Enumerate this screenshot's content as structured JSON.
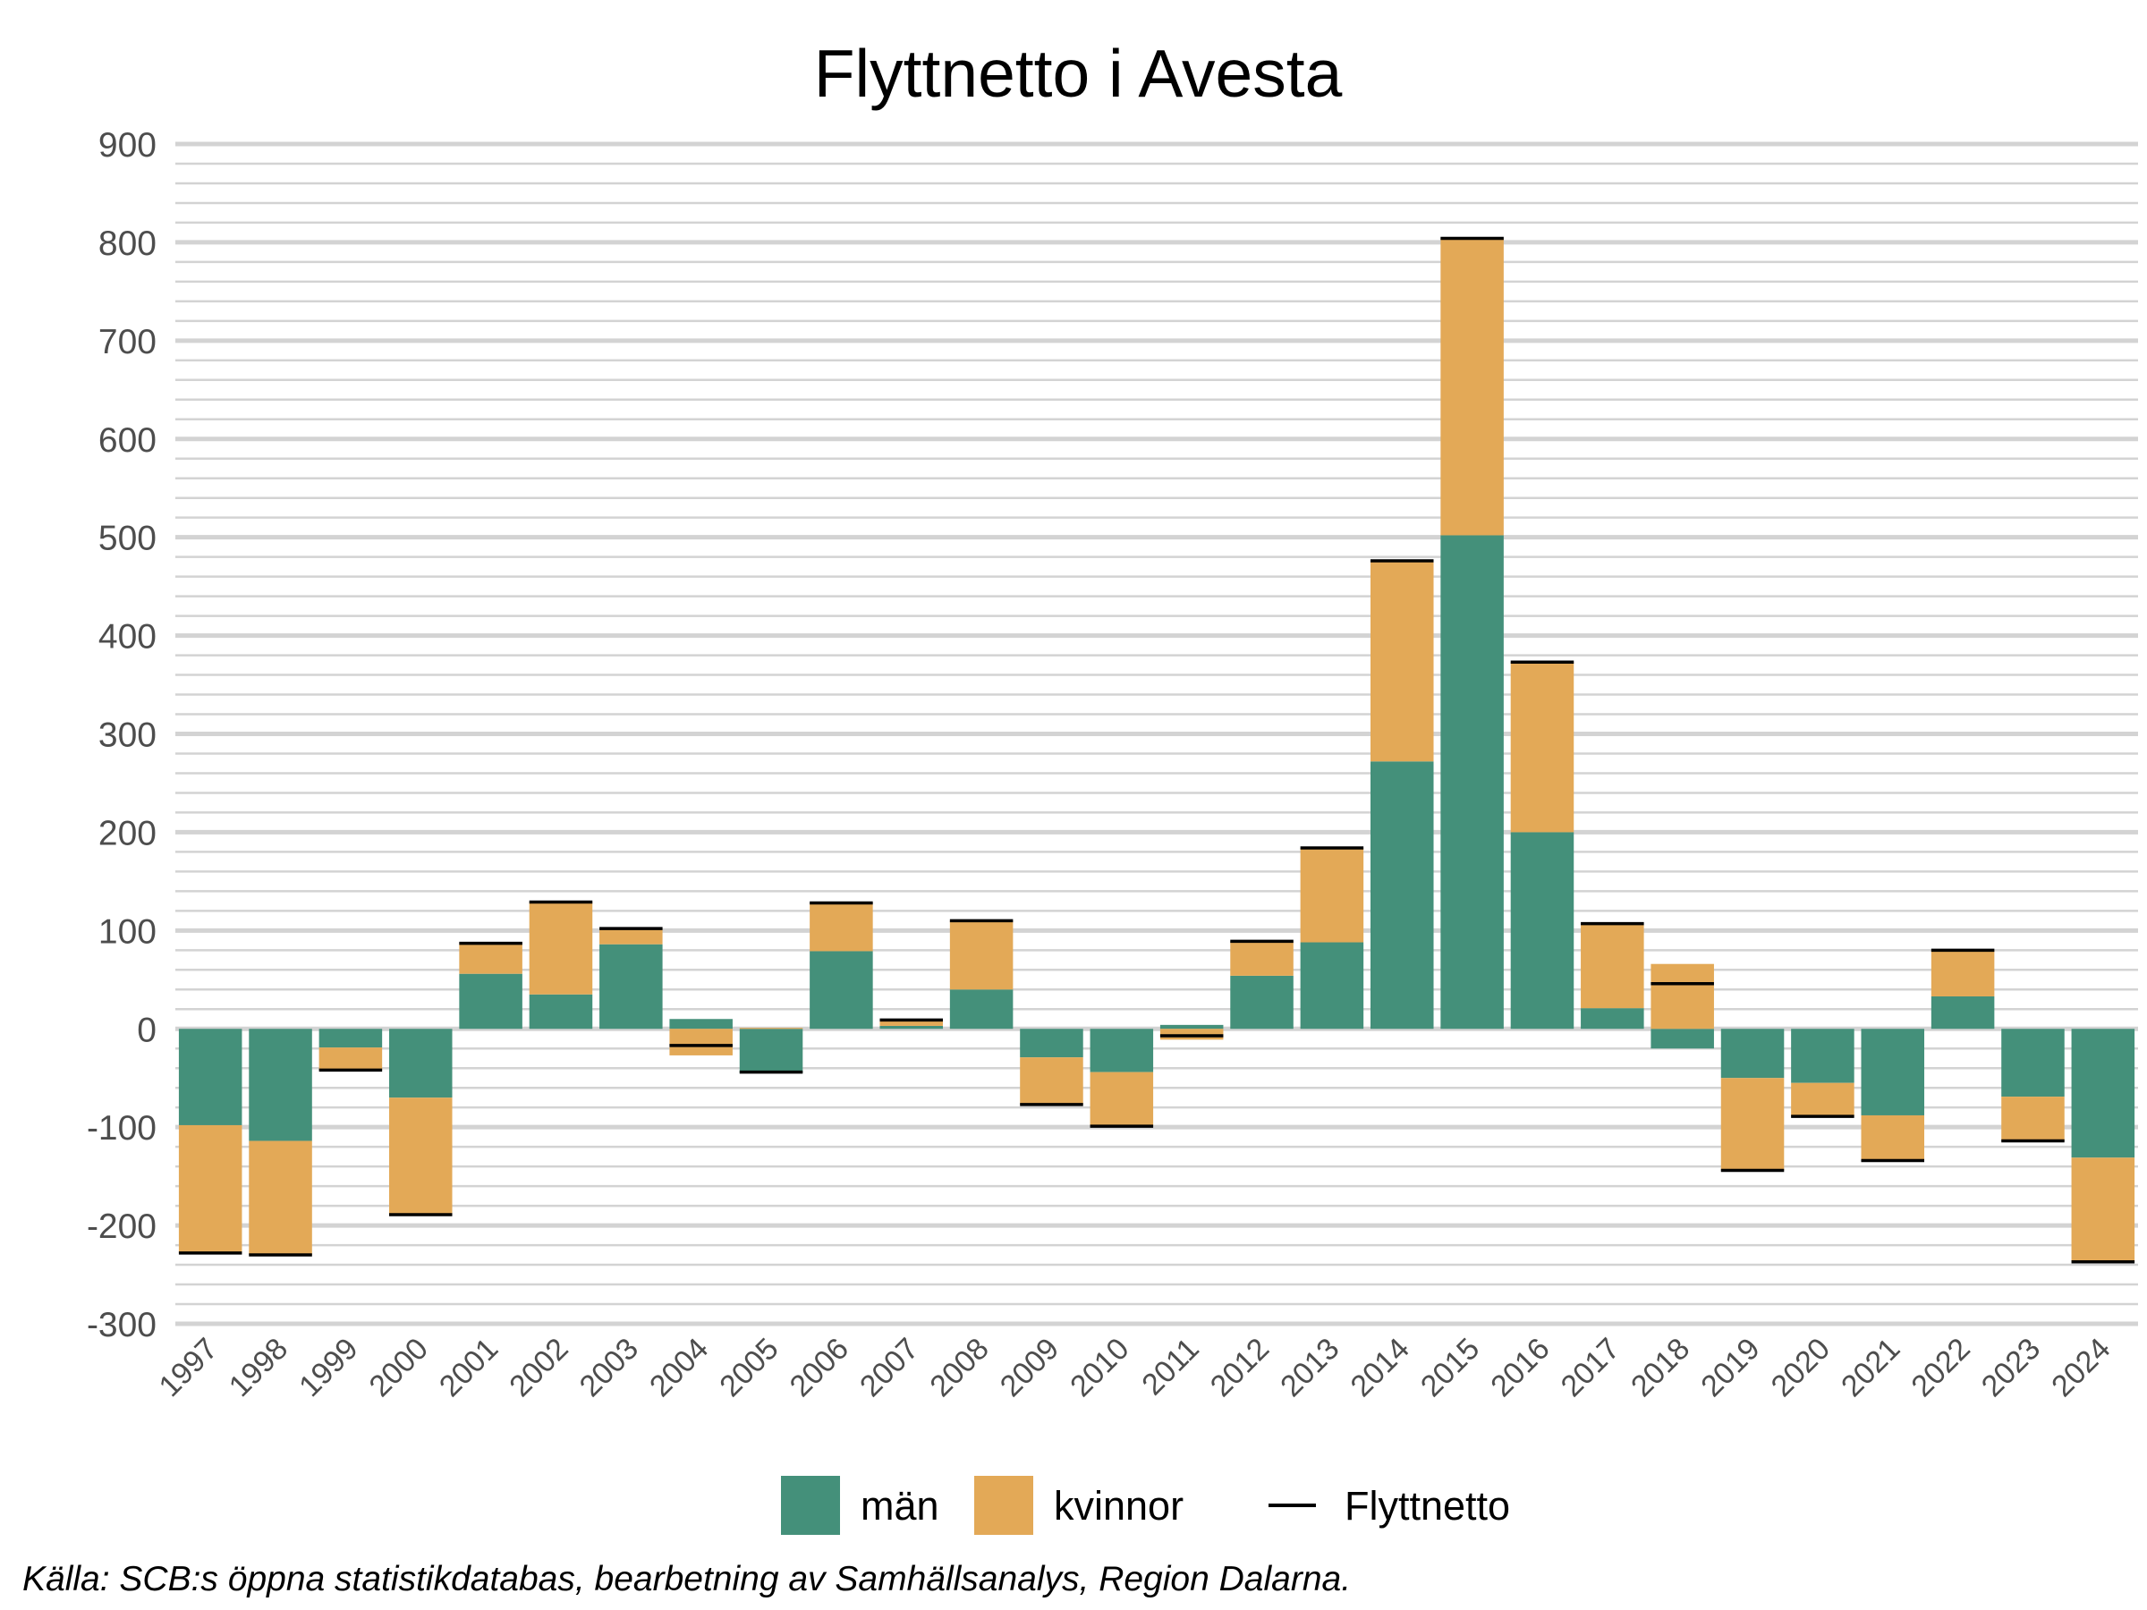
{
  "chart_data": {
    "type": "bar",
    "stacked": true,
    "title": "Flyttnetto i Avesta",
    "xlabel": "",
    "ylabel": "",
    "ylim": [
      -300,
      900
    ],
    "y_major_step": 100,
    "y_minor_step": 20,
    "grid": true,
    "legend_position": "bottom",
    "categories": [
      "1997",
      "1998",
      "1999",
      "2000",
      "2001",
      "2002",
      "2003",
      "2004",
      "2005",
      "2006",
      "2007",
      "2008",
      "2009",
      "2010",
      "2011",
      "2012",
      "2013",
      "2014",
      "2015",
      "2016",
      "2017",
      "2018",
      "2019",
      "2020",
      "2021",
      "2022",
      "2023",
      "2024"
    ],
    "series": [
      {
        "name": "män",
        "color": "#44907A",
        "values": [
          -98,
          -114,
          -19,
          -70,
          56,
          35,
          86,
          10,
          -45,
          79,
          3,
          40,
          -29,
          -44,
          4,
          54,
          88,
          272,
          502,
          200,
          21,
          -20,
          -50,
          -55,
          -88,
          33,
          -69,
          -131
        ]
      },
      {
        "name": "kvinnor",
        "color": "#E3A957",
        "values": [
          -130,
          -116,
          -23,
          -119,
          31,
          94,
          16,
          -27,
          1,
          49,
          6,
          70,
          -48,
          -55,
          -11,
          35,
          96,
          204,
          302,
          173,
          86,
          66,
          -94,
          -34,
          -46,
          47,
          -45,
          -106
        ]
      }
    ],
    "line_series": {
      "name": "Flyttnetto",
      "color": "#000000",
      "values": [
        -228,
        -230,
        -42,
        -189,
        87,
        129,
        102,
        -17,
        -44,
        128,
        9,
        110,
        -77,
        -99,
        -7,
        89,
        184,
        476,
        804,
        373,
        107,
        46,
        -144,
        -89,
        -134,
        80,
        -114,
        -237
      ]
    },
    "caption": "Källa: SCB:s öppna statistikdatabas, bearbetning av Samhällsanalys, Region Dalarna."
  }
}
